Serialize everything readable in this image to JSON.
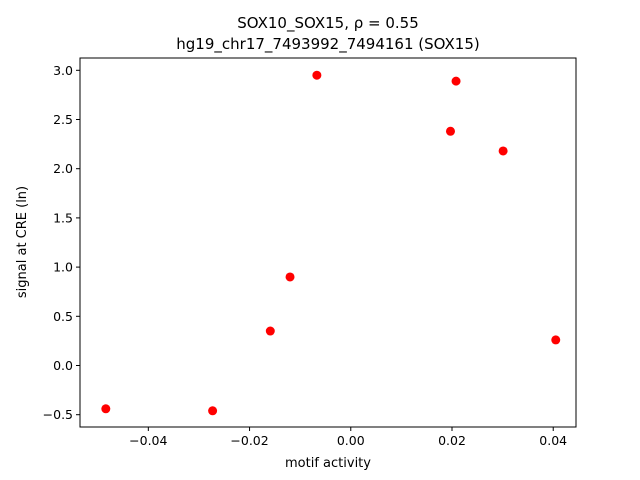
{
  "chart_data": {
    "type": "scatter",
    "title_line1": "SOX10_SOX15, ρ = 0.55",
    "title_line2": "hg19_chr17_7493992_7494161 (SOX15)",
    "xlabel": "motif activity",
    "ylabel": "signal at CRE (ln)",
    "xlim": [
      -0.0535,
      0.0445
    ],
    "ylim": [
      -0.625,
      3.125
    ],
    "xticks": [
      -0.04,
      -0.02,
      0.0,
      0.02,
      0.04
    ],
    "xtick_labels": [
      "−0.04",
      "−0.02",
      "0.00",
      "0.02",
      "0.04"
    ],
    "yticks": [
      -0.5,
      0.0,
      0.5,
      1.0,
      1.5,
      2.0,
      2.5,
      3.0
    ],
    "ytick_labels": [
      "−0.5",
      "0.0",
      "0.5",
      "1.0",
      "1.5",
      "2.0",
      "2.5",
      "3.0"
    ],
    "grid": false,
    "point_color": "#ff0000",
    "points": [
      {
        "x": -0.0484,
        "y": -0.44
      },
      {
        "x": -0.0273,
        "y": -0.46
      },
      {
        "x": -0.0159,
        "y": 0.35
      },
      {
        "x": -0.012,
        "y": 0.9
      },
      {
        "x": -0.0067,
        "y": 2.95
      },
      {
        "x": 0.0197,
        "y": 2.38
      },
      {
        "x": 0.0208,
        "y": 2.89
      },
      {
        "x": 0.0301,
        "y": 2.18
      },
      {
        "x": 0.0405,
        "y": 0.26
      }
    ]
  }
}
